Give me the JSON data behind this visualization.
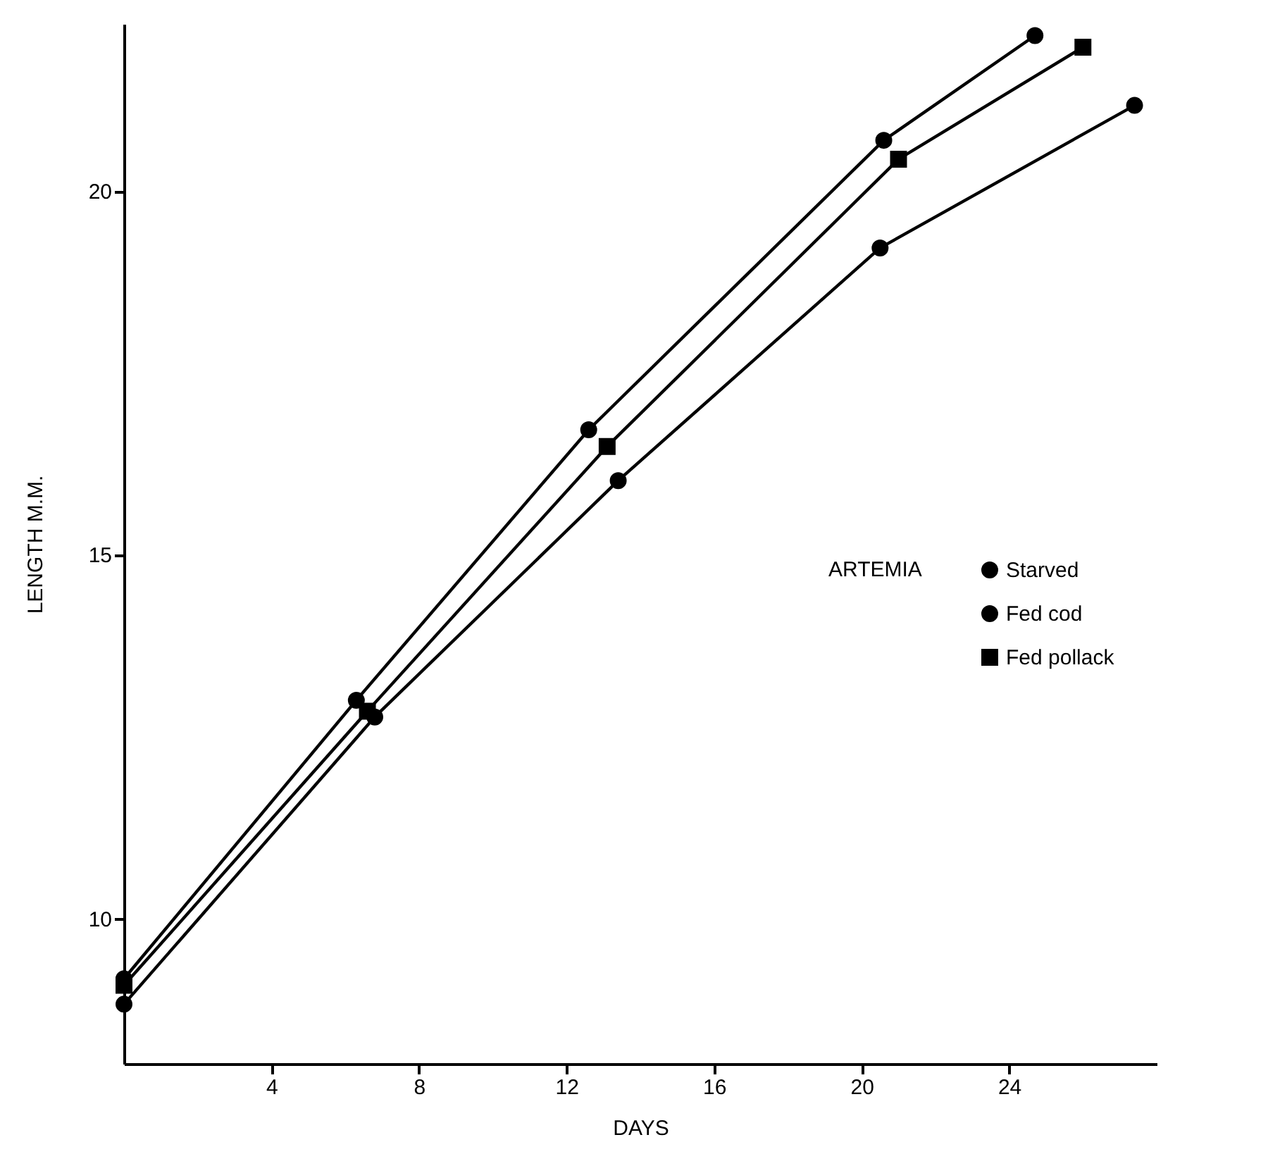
{
  "chart_data": {
    "type": "line",
    "xlabel": "DAYS",
    "ylabel": "LENGTH    M.M.",
    "legend_title": "ARTEMIA",
    "legend": "right",
    "marker": "circle",
    "line_style": "solid",
    "xlim": [
      0,
      28
    ],
    "xticks": [
      4,
      8,
      12,
      16,
      20,
      24
    ],
    "ylim": [
      8,
      22.3
    ],
    "yticks": [
      10,
      15,
      20
    ],
    "series": [
      {
        "name": "Starved",
        "color": "#000000",
        "marker": "circle",
        "x": [
          0,
          6.3,
          12.6,
          20.6,
          24.7
        ],
        "values": [
          9.17,
          13.0,
          16.72,
          20.7,
          22.14
        ]
      },
      {
        "name": "Fed cod",
        "color": "#000000",
        "marker": "circle",
        "x": [
          0,
          6.8,
          13.4,
          20.5,
          27.4
        ],
        "values": [
          8.82,
          12.77,
          16.02,
          19.22,
          21.18
        ]
      },
      {
        "name": "Fed pollack",
        "color": "#000000",
        "marker": "square",
        "x": [
          0,
          6.6,
          13.1,
          21.0,
          26.0
        ],
        "values": [
          9.08,
          12.85,
          16.49,
          20.44,
          21.98
        ]
      }
    ]
  }
}
